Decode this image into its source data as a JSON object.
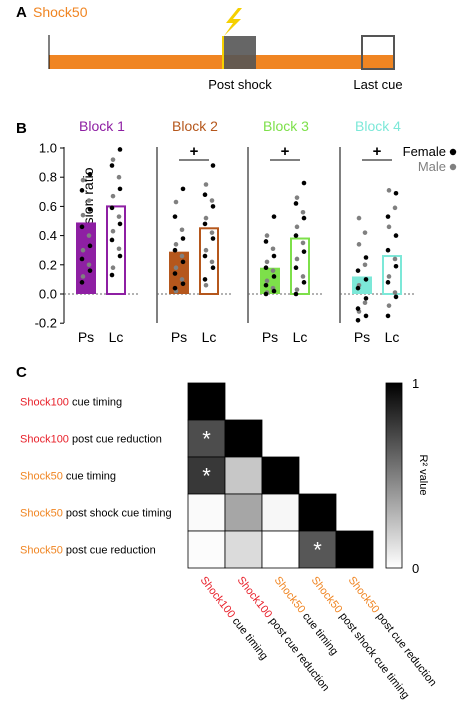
{
  "panel_a": {
    "letter": "A",
    "title": "Shock50",
    "post_shock_label": "Post shock",
    "last_cue_label": "Last cue",
    "colors": {
      "bar": "#f08522",
      "cue_box": "#555555",
      "bolt": "#f5d000",
      "title": "#f08522"
    }
  },
  "panel_b": {
    "letter": "B",
    "female_label": "Female",
    "male_label": "Male",
    "plus_symbol": "+"
  },
  "panel_c": {
    "letter": "C",
    "row_labels": [
      {
        "prefix": "Shock100",
        "rest": " cue timing",
        "color": "#e8202a"
      },
      {
        "prefix": "Shock100",
        "rest": " post cue reduction",
        "color": "#e8202a"
      },
      {
        "prefix": "Shock50",
        "rest": " cue timing",
        "color": "#f08522"
      },
      {
        "prefix": "Shock50",
        "rest": " post shock cue timing",
        "color": "#f08522"
      },
      {
        "prefix": "Shock50",
        "rest": " post cue reduction",
        "color": "#f08522"
      }
    ],
    "colorbar": {
      "max_label": "1",
      "min_label": "0",
      "label": "R² value"
    }
  },
  "chart_data": [
    {
      "type": "bar",
      "title": "",
      "ylabel": "Suppression ratio",
      "ylim": [
        -0.2,
        1.0
      ],
      "yticks": [
        "-0.2",
        "0.0",
        "0.2",
        "0.4",
        "0.6",
        "0.8",
        "1.0"
      ],
      "categories": [
        "Ps",
        "Lc"
      ],
      "legend": [
        "Female",
        "Male"
      ],
      "legend_placement": "top-right",
      "blocks": [
        {
          "name": "Block 1",
          "color": "#8e1fa3",
          "plus": false,
          "values": [
            0.49,
            0.6
          ],
          "female_points": [
            [
              0.82,
              0.71,
              0.58,
              0.46,
              0.33,
              0.24,
              0.16,
              0.08
            ],
            [
              0.99,
              0.88,
              0.72,
              0.59,
              0.48,
              0.37,
              0.26,
              0.13
            ]
          ],
          "male_points": [
            [
              0.78,
              0.64,
              0.54,
              0.4,
              0.3,
              0.2,
              0.12
            ],
            [
              0.92,
              0.8,
              0.67,
              0.53,
              0.43,
              0.31,
              0.18
            ]
          ]
        },
        {
          "name": "Block 2",
          "color": "#b5571c",
          "plus": true,
          "values": [
            0.29,
            0.45
          ],
          "female_points": [
            [
              0.72,
              0.53,
              0.38,
              0.3,
              0.22,
              0.14,
              0.07,
              0.04
            ],
            [
              0.88,
              0.68,
              0.6,
              0.48,
              0.38,
              0.26,
              0.18,
              0.1
            ]
          ],
          "male_points": [
            [
              0.63,
              0.44,
              0.34,
              0.26,
              0.18,
              0.1,
              0.02
            ],
            [
              0.75,
              0.64,
              0.52,
              0.42,
              0.3,
              0.22,
              0.06
            ]
          ]
        },
        {
          "name": "Block 3",
          "color": "#7de04a",
          "plus": true,
          "values": [
            0.18,
            0.38
          ],
          "female_points": [
            [
              0.53,
              0.36,
              0.26,
              0.18,
              0.12,
              0.06,
              0.02,
              0.0
            ],
            [
              0.76,
              0.62,
              0.52,
              0.4,
              0.29,
              0.18,
              0.08,
              0.0
            ]
          ],
          "male_points": [
            [
              0.4,
              0.31,
              0.22,
              0.16,
              0.09,
              0.04,
              0.01
            ],
            [
              0.66,
              0.56,
              0.46,
              0.35,
              0.24,
              0.12,
              0.03
            ]
          ]
        },
        {
          "name": "Block 4",
          "color": "#7ce8d8",
          "plus": true,
          "values": [
            0.12,
            0.26
          ],
          "female_points": [
            [
              0.25,
              0.16,
              0.1,
              0.04,
              -0.03,
              -0.1,
              -0.15,
              -0.18
            ],
            [
              0.69,
              0.53,
              0.4,
              0.3,
              0.19,
              0.08,
              -0.02,
              -0.15
            ]
          ],
          "male_points": [
            [
              0.52,
              0.42,
              0.34,
              0.2,
              0.06,
              -0.06,
              -0.12
            ],
            [
              0.71,
              0.59,
              0.46,
              0.24,
              0.12,
              0.01,
              -0.08
            ]
          ]
        }
      ]
    },
    {
      "type": "heatmap",
      "title": "",
      "rows": [
        "Shock100 cue timing",
        "Shock100 post cue reduction",
        "Shock50 cue timing",
        "Shock50 post shock cue timing",
        "Shock50 post cue reduction"
      ],
      "columns": [
        "Shock100 cue timing",
        "Shock100 post cue reduction",
        "Shock50 cue timing",
        "Shock50 post shock cue timing",
        "Shock50 post cue reduction"
      ],
      "values": [
        [
          1.0,
          null,
          null,
          null,
          null
        ],
        [
          0.7,
          1.0,
          null,
          null,
          null
        ],
        [
          0.78,
          0.22,
          1.0,
          null,
          null
        ],
        [
          0.02,
          0.35,
          0.03,
          1.0,
          null
        ],
        [
          0.01,
          0.14,
          0.0,
          0.66,
          1.0
        ]
      ],
      "significant_marker": "*",
      "significant": [
        [
          1,
          0
        ],
        [
          2,
          0
        ],
        [
          4,
          3
        ]
      ],
      "colorscale": [
        "#ffffff",
        "#000000"
      ],
      "range": [
        0,
        1
      ]
    }
  ]
}
